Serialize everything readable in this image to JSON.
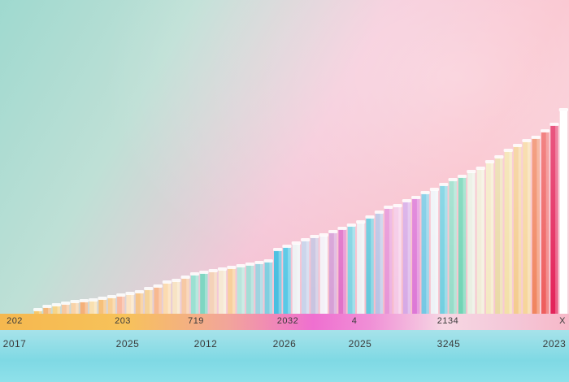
{
  "chart_data": {
    "type": "bar",
    "title": "",
    "xlabel": "",
    "ylabel": "",
    "ylim": [
      0,
      260
    ],
    "grid": false,
    "values": [
      4,
      8,
      10,
      12,
      14,
      15,
      16,
      18,
      20,
      22,
      24,
      26,
      30,
      33,
      38,
      40,
      44,
      48,
      50,
      52,
      54,
      56,
      58,
      60,
      62,
      64,
      78,
      82,
      86,
      90,
      94,
      96,
      100,
      104,
      108,
      112,
      118,
      124,
      130,
      132,
      138,
      142,
      148,
      152,
      158,
      164,
      168,
      174,
      178,
      186,
      192,
      200,
      206,
      212,
      216,
      224,
      232,
      250
    ],
    "colors": [
      "#f6c86a",
      "#f3b77a",
      "#f6d58a",
      "#f6c8a0",
      "#f9d3a8",
      "#f4b07a",
      "#f9e0b0",
      "#f6c07a",
      "#f8cf96",
      "#f9b9a0",
      "#fbe3c2",
      "#f6c58a",
      "#f5d39a",
      "#f8b990",
      "#fbdbb0",
      "#f7e3c4",
      "#f7c9a4",
      "#9be0d2",
      "#7fd6c2",
      "#f4d2b8",
      "#f6e9d4",
      "#f8cf9c",
      "#b9e5dc",
      "#a5ddd6",
      "#9fd3e0",
      "#7fcfe0",
      "#49bfe0",
      "#59c9e6",
      "#eef1f3",
      "#c9d3ea",
      "#c9c4e0",
      "#f4f1f7",
      "#d6a0d6",
      "#e072c8",
      "#7fd3e2",
      "#eef0f3",
      "#63c9dc",
      "#b9c3e4",
      "#e794d6",
      "#f5c8e6",
      "#d6a9e6",
      "#dd77d6",
      "#74c8e4",
      "#eef2f6",
      "#72cfe0",
      "#96dcc8",
      "#6fd4b4",
      "#e9efe2",
      "#f1ecd6",
      "#f4e8c2",
      "#ead9a6",
      "#f3e0a8",
      "#f4cc8e",
      "#f6d59a",
      "#f08560",
      "#ee5e5e",
      "#e3245a",
      "#ffffff"
    ],
    "band_labels": [
      "202",
      "203",
      "719",
      "2032",
      "4",
      "2134",
      "X"
    ],
    "x_tick_labels": [
      "2017",
      "2025",
      "2012",
      "2026",
      "2025",
      "3245",
      "2023"
    ]
  }
}
